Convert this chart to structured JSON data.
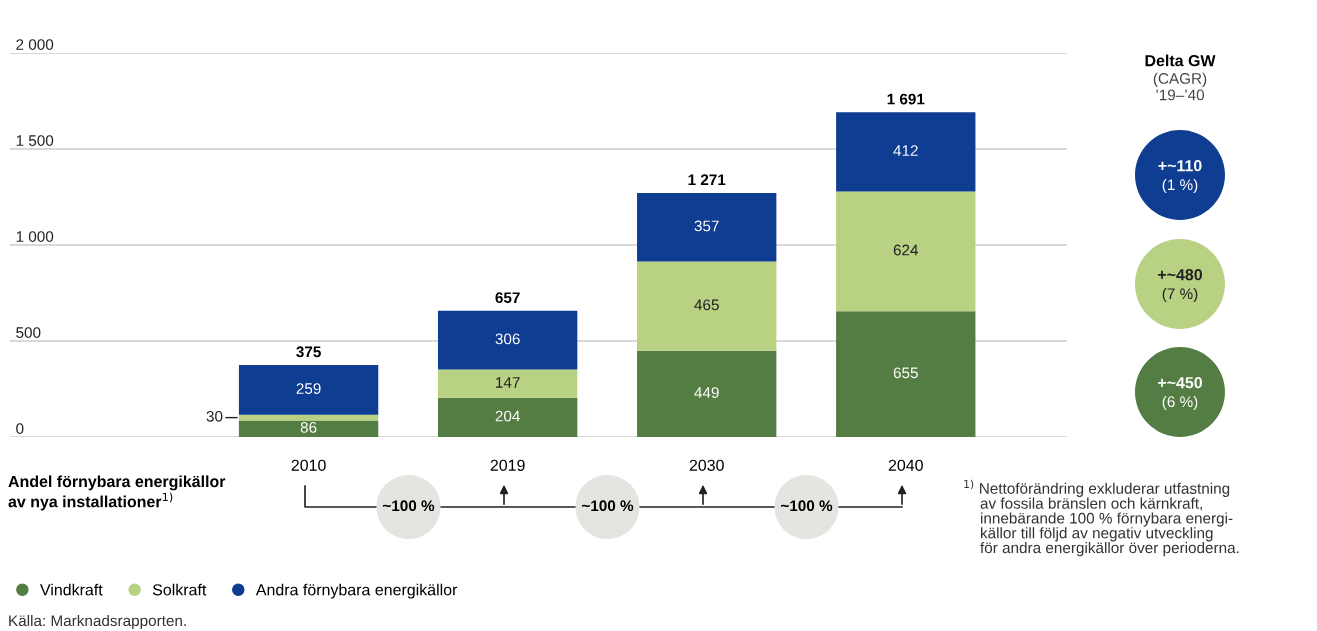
{
  "chart_data": {
    "type": "bar",
    "stacked": true,
    "categories": [
      "2010",
      "2019",
      "2030",
      "2040"
    ],
    "series": [
      {
        "name": "Vindkraft",
        "color": "#547d43",
        "values": [
          86,
          204,
          449,
          655
        ]
      },
      {
        "name": "Solkraft",
        "color": "#b8d183",
        "values": [
          30,
          147,
          465,
          624
        ]
      },
      {
        "name": "Andra förnybara energikällor",
        "color": "#0f3d91",
        "values": [
          259,
          306,
          357,
          412
        ]
      }
    ],
    "ylim": [
      0,
      2000
    ],
    "yticks": [
      {
        "value": 0,
        "label": "0"
      },
      {
        "value": 500,
        "label": "500"
      },
      {
        "value": 1000,
        "label": "1 000"
      },
      {
        "value": 1500,
        "label": "1 500"
      },
      {
        "value": 2000,
        "label": "2 000"
      }
    ],
    "grid": "y",
    "legend": "bottom left",
    "data_labels": true,
    "totals": [
      "375",
      "657",
      "1 271",
      "1 691"
    ],
    "annotations": [
      "Delta GW",
      "(CAGR)\n’19–’40",
      "+~110",
      "(1 %)",
      "+~480",
      "(7 %)",
      "+~450",
      "(6 %)",
      "Andel förnybara energikällor\nav nya installationer$^{1)}$",
      "~100 %",
      "~100 %",
      "~100 %",
      "$^{1)}$ Nettoförändring exkluderar utfastning\n    av fossila bränslen och kärnkraft,\n    innebärande 100 % förnybara energi-\n    källor till följd av negativ utveckling\n    för andra energikällor över perioderna.",
      "Källa: Marknadsrapporten."
    ]
  }
}
